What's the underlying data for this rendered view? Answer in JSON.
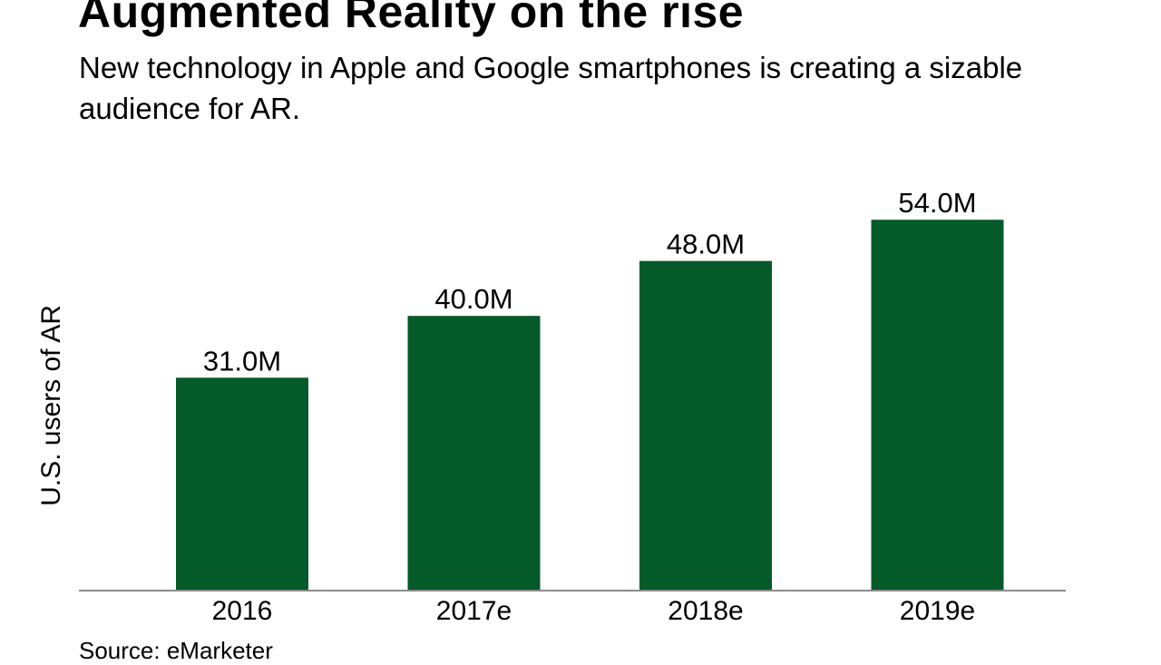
{
  "title": "Augmented Reality on the rise",
  "subtitle": "New technology in Apple and Google smartphones is creating a sizable audience for AR.",
  "source": "Source: eMarketer",
  "chart_data": {
    "type": "bar",
    "title": "Augmented Reality on the rise",
    "subtitle": "New technology in Apple and Google smartphones is creating a sizable audience for AR.",
    "xlabel": "",
    "ylabel": "U.S. users of AR",
    "categories": [
      "2016",
      "2017e",
      "2018e",
      "2019e"
    ],
    "values": [
      31.0,
      40.0,
      48.0,
      54.0
    ],
    "data_labels": [
      "31.0M",
      "40.0M",
      "48.0M",
      "54.0M"
    ],
    "unit": "M",
    "ylim": [
      0,
      86
    ],
    "grid": false,
    "legend": "none",
    "colors": {
      "bar": "#045a29",
      "axis": "#8c8c8c"
    }
  }
}
